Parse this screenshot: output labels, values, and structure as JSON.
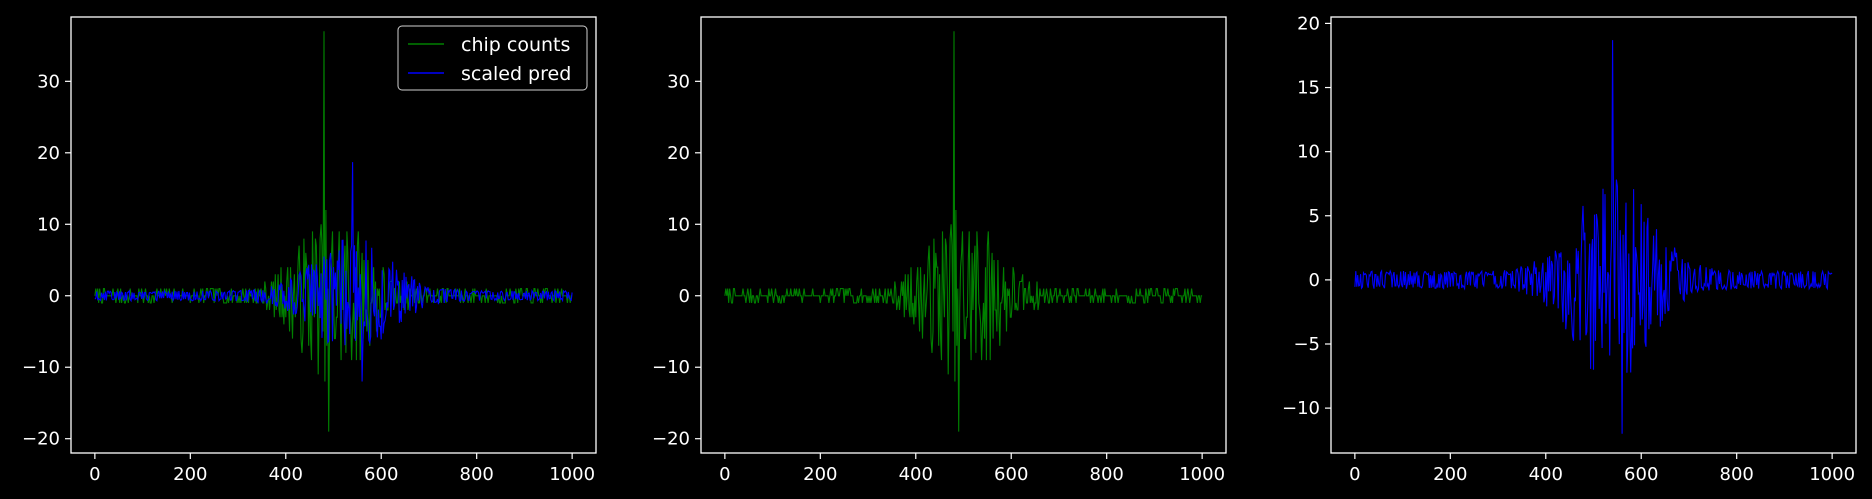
{
  "chart_data": [
    {
      "type": "line",
      "title": "",
      "xlabel": "",
      "ylabel": "",
      "xlim": [
        -50,
        1050
      ],
      "ylim": [
        -22,
        39
      ],
      "xticks": [
        0,
        200,
        400,
        600,
        800,
        1000
      ],
      "xtick_labels": [
        "0",
        "200",
        "400",
        "600",
        "800",
        "1000"
      ],
      "yticks": [
        -20,
        -10,
        0,
        10,
        20,
        30
      ],
      "ytick_labels": [
        "−20",
        "−10",
        "0",
        "10",
        "20",
        "30"
      ],
      "grid": false,
      "legend": {
        "placement": "top-right",
        "entries": [
          "chip counts",
          "scaled pred"
        ]
      },
      "series": [
        {
          "name": "chip counts",
          "color": "#008000",
          "kind": "counts",
          "peak": 37,
          "trough": -19
        },
        {
          "name": "scaled pred",
          "color": "#0000ff",
          "kind": "pred",
          "peak": 18.7,
          "trough": -12
        }
      ]
    },
    {
      "type": "line",
      "title": "",
      "xlabel": "",
      "ylabel": "",
      "xlim": [
        -50,
        1050
      ],
      "ylim": [
        -22,
        39
      ],
      "xticks": [
        0,
        200,
        400,
        600,
        800,
        1000
      ],
      "xtick_labels": [
        "0",
        "200",
        "400",
        "600",
        "800",
        "1000"
      ],
      "yticks": [
        -20,
        -10,
        0,
        10,
        20,
        30
      ],
      "ytick_labels": [
        "−20",
        "−10",
        "0",
        "10",
        "20",
        "30"
      ],
      "grid": false,
      "series": [
        {
          "color": "#008000",
          "kind": "counts",
          "peak": 37,
          "trough": -19
        }
      ]
    },
    {
      "type": "line",
      "title": "",
      "xlabel": "",
      "ylabel": "",
      "xlim": [
        -50,
        1050
      ],
      "ylim": [
        -13.5,
        20.5
      ],
      "xticks": [
        0,
        200,
        400,
        600,
        800,
        1000
      ],
      "xtick_labels": [
        "0",
        "200",
        "400",
        "600",
        "800",
        "1000"
      ],
      "yticks": [
        -10,
        -5,
        0,
        5,
        10,
        15,
        20
      ],
      "ytick_labels": [
        "−10",
        "−5",
        "0",
        "5",
        "10",
        "15",
        "20"
      ],
      "grid": false,
      "series": [
        {
          "color": "#0000ff",
          "kind": "pred",
          "peak": 18.7,
          "trough": -12
        }
      ]
    }
  ],
  "theme": {
    "background": "#000000",
    "axes_color": "#ffffff"
  }
}
